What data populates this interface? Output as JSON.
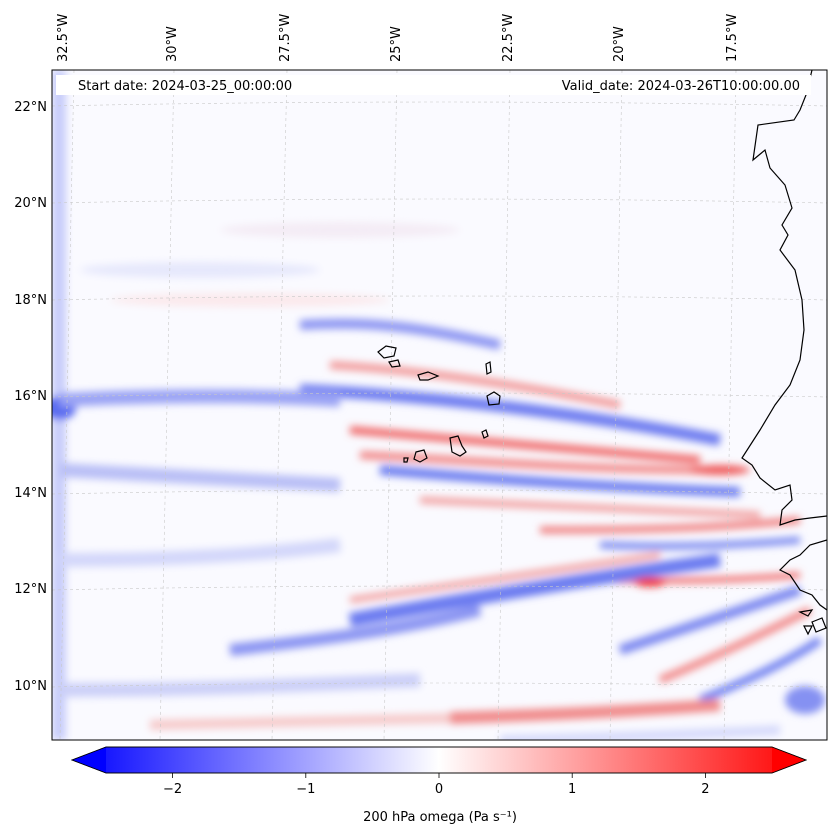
{
  "map": {
    "start_date_label": "Start date: 2024-03-25_00:00:00",
    "valid_date_label": "Valid_date: 2024-03-26T10:00:00.00",
    "lon_labels": [
      "32.5°W",
      "30°W",
      "27.5°W",
      "25°W",
      "22.5°W",
      "20°W",
      "17.5°W"
    ],
    "lat_labels": [
      "22°N",
      "20°N",
      "18°N",
      "16°N",
      "14°N",
      "12°N",
      "10°N"
    ],
    "lon_range": [
      -33.3,
      -16.2
    ],
    "lat_range": [
      8.9,
      22.8
    ]
  },
  "colorbar": {
    "label": "200 hPa omega (Pa s⁻¹)",
    "ticks": [
      "−2",
      "−1",
      "0",
      "1",
      "2"
    ],
    "tick_values": [
      -2,
      -1,
      0,
      1,
      2
    ],
    "range": [
      -2.5,
      2.5
    ],
    "colors": {
      "low": "#0000ff",
      "mid": "#ffffff",
      "high": "#ff0000"
    }
  }
}
